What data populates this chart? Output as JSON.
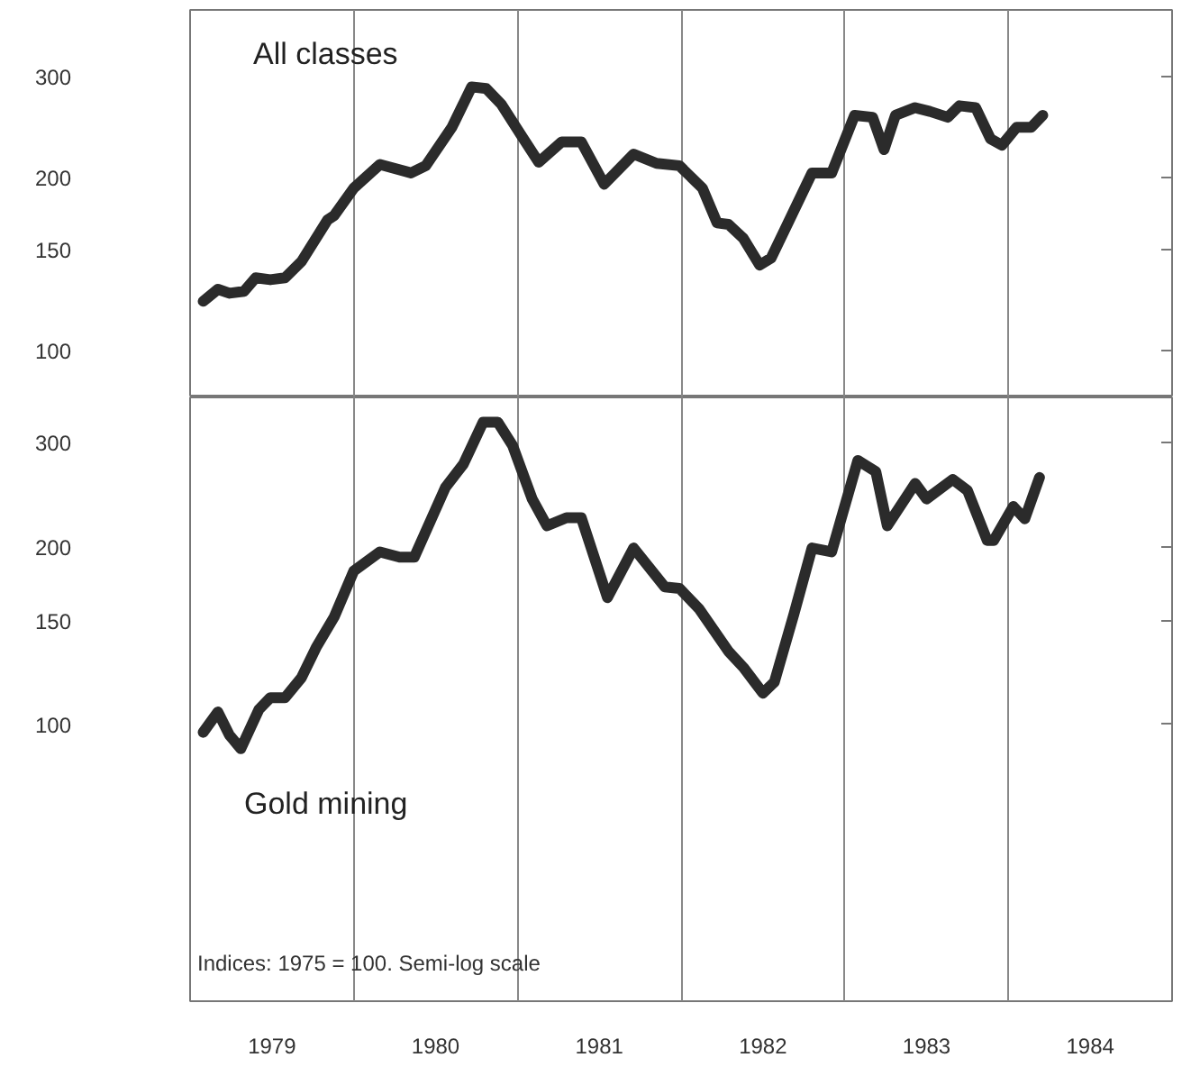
{
  "chart_data": [
    {
      "type": "line",
      "log": "y",
      "grid": "x",
      "tick_labels": "y",
      "xlim": [
        1979,
        1985
      ],
      "ylim": [
        83,
        392
      ],
      "yticks": [
        100,
        150,
        200,
        300
      ],
      "xticks": [
        {
          "value": 1979,
          "label": null
        },
        {
          "value": 1980,
          "label": null
        },
        {
          "value": 1981,
          "label": null
        },
        {
          "value": 1982,
          "label": null
        },
        {
          "value": 1983,
          "label": null
        },
        {
          "value": 1984,
          "label": null
        },
        {
          "value": 1985,
          "label": null
        }
      ],
      "series": [
        {
          "name": "All classes",
          "color": "#2b2b2b",
          "x": [
            1979.08,
            1979.17,
            1979.24,
            1979.33,
            1979.4,
            1979.49,
            1979.58,
            1979.68,
            1979.84,
            1979.88,
            1980.0,
            1980.16,
            1980.35,
            1980.44,
            1980.6,
            1980.72,
            1980.81,
            1980.9,
            1981.02,
            1981.13,
            1981.27,
            1981.39,
            1981.53,
            1981.71,
            1981.85,
            1981.99,
            1982.13,
            1982.22,
            1982.29,
            1982.38,
            1982.48,
            1982.55,
            1982.8,
            1982.92,
            1983.06,
            1983.17,
            1983.24,
            1983.31,
            1983.43,
            1983.52,
            1983.63,
            1983.7,
            1983.8,
            1983.89,
            1983.96,
            1984.05,
            1984.14,
            1984.21
          ],
          "values": [
            122,
            128,
            126,
            127,
            134,
            133,
            134,
            143,
            169,
            172,
            192,
            211,
            204,
            210,
            245,
            288,
            286,
            269,
            238,
            213,
            231,
            231,
            195,
            220,
            212,
            210,
            192,
            167,
            166,
            157,
            141,
            145,
            204,
            204,
            257,
            255,
            224,
            257,
            265,
            261,
            255,
            267,
            265,
            234,
            228,
            245,
            245,
            257
          ]
        }
      ]
    },
    {
      "type": "line",
      "log": "y",
      "grid": "x",
      "xlim": [
        1979,
        1985
      ],
      "ylim": [
        34,
        358
      ],
      "yticks": [
        100,
        150,
        200,
        300
      ],
      "xticks": [
        {
          "value": 1979,
          "label": null
        },
        {
          "value": 1979.5,
          "label": "1979"
        },
        {
          "value": 1980,
          "label": null
        },
        {
          "value": 1980.5,
          "label": "1980"
        },
        {
          "value": 1981,
          "label": null
        },
        {
          "value": 1981.5,
          "label": "1981"
        },
        {
          "value": 1982,
          "label": null
        },
        {
          "value": 1982.5,
          "label": "1982"
        },
        {
          "value": 1983,
          "label": null
        },
        {
          "value": 1983.5,
          "label": "1983"
        },
        {
          "value": 1984,
          "label": null
        },
        {
          "value": 1984.5,
          "label": "1984"
        },
        {
          "value": 1985,
          "label": null
        }
      ],
      "annotations": [
        "Indices: 1975 = 100. Semi-log scale"
      ],
      "series": [
        {
          "name": "Gold mining",
          "color": "#2b2b2b",
          "x": [
            1979.08,
            1979.17,
            1979.24,
            1979.31,
            1979.42,
            1979.49,
            1979.58,
            1979.68,
            1979.77,
            1979.88,
            1980.0,
            1980.16,
            1980.28,
            1980.37,
            1980.56,
            1980.67,
            1980.79,
            1980.88,
            1980.97,
            1981.09,
            1981.18,
            1981.3,
            1981.39,
            1981.55,
            1981.71,
            1981.9,
            1981.99,
            1982.11,
            1982.29,
            1982.38,
            1982.5,
            1982.57,
            1982.69,
            1982.8,
            1982.92,
            1983.08,
            1983.19,
            1983.26,
            1983.43,
            1983.5,
            1983.66,
            1983.75,
            1983.87,
            1983.91,
            1984.03,
            1984.1,
            1984.19
          ],
          "values": [
            97,
            105,
            96,
            91,
            106,
            111,
            111,
            120,
            135,
            152,
            182,
            196,
            192,
            192,
            252,
            276,
            325,
            325,
            297,
            241,
            217,
            224,
            224,
            164,
            199,
            171,
            170,
            157,
            133,
            125,
            113,
            118,
            154,
            199,
            196,
            280,
            268,
            217,
            256,
            241,
            260,
            249,
            205,
            205,
            234,
            223,
            262
          ]
        }
      ]
    }
  ]
}
